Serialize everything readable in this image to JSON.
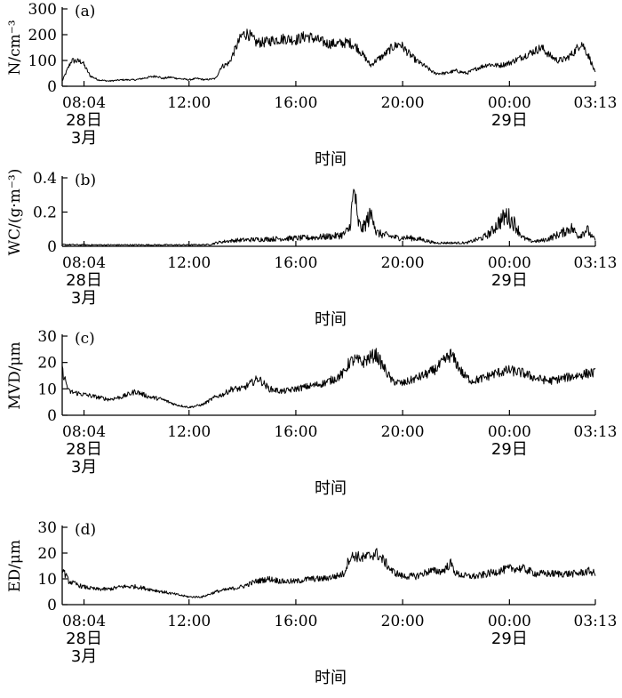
{
  "chart_data": [
    {
      "type": "line",
      "panel_label": "(a)",
      "ylabel": "N/cm⁻³",
      "xlabel": "时间",
      "x_unit": "hours since 28日 00:00",
      "xlim": [
        7.25,
        27.217
      ],
      "ylim": [
        0,
        300
      ],
      "yticks": [
        0,
        100,
        200,
        300
      ],
      "xticks": [
        {
          "x": 8.067,
          "lines": [
            "08:04",
            "28日",
            "3月"
          ]
        },
        {
          "x": 12,
          "lines": [
            "12:00"
          ]
        },
        {
          "x": 16,
          "lines": [
            "16:00"
          ]
        },
        {
          "x": 20,
          "lines": [
            "20:00"
          ]
        },
        {
          "x": 24,
          "lines": [
            "00:00",
            "29日"
          ]
        },
        {
          "x": 27.217,
          "lines": [
            "03:13"
          ]
        }
      ],
      "series": [
        {
          "x": [
            7.25,
            7.6,
            8.0,
            8.3,
            8.6,
            9.0,
            9.5,
            10.0,
            10.5,
            10.8,
            11.0,
            11.3,
            11.6,
            12.0,
            12.3,
            12.6,
            13.0,
            13.2,
            13.5,
            13.8,
            14.0,
            14.2,
            14.5,
            14.8,
            15.2,
            15.6,
            16.0,
            16.4,
            16.8,
            17.2,
            17.6,
            18.0,
            18.3,
            18.6,
            18.8,
            19.0,
            19.3,
            19.6,
            19.9,
            20.2,
            20.5,
            20.8,
            21.2,
            21.6,
            22.0,
            22.4,
            22.8,
            23.2,
            23.6,
            24.0,
            24.4,
            24.8,
            25.2,
            25.5,
            25.8,
            26.1,
            26.4,
            26.7,
            27.0,
            27.217
          ],
          "y": [
            20,
            100,
            95,
            40,
            25,
            20,
            25,
            25,
            35,
            40,
            30,
            35,
            30,
            25,
            30,
            25,
            30,
            75,
            90,
            160,
            200,
            205,
            170,
            170,
            180,
            185,
            180,
            195,
            180,
            165,
            165,
            170,
            150,
            110,
            80,
            100,
            120,
            150,
            165,
            130,
            100,
            80,
            50,
            50,
            60,
            50,
            70,
            85,
            80,
            90,
            110,
            130,
            150,
            120,
            100,
            105,
            130,
            170,
            110,
            50
          ]
        }
      ]
    },
    {
      "type": "line",
      "panel_label": "(b)",
      "ylabel": "WC/(g·m⁻³)",
      "xlabel": "时间",
      "x_unit": "hours since 28日 00:00",
      "xlim": [
        7.25,
        27.217
      ],
      "ylim": [
        0,
        0.4
      ],
      "yticks": [
        0,
        0.2,
        0.4
      ],
      "ytick_labels": [
        "0",
        "0.2",
        "0.4"
      ],
      "xticks": [
        {
          "x": 8.067,
          "lines": [
            "08:04",
            "28日",
            "3月"
          ]
        },
        {
          "x": 12,
          "lines": [
            "12:00"
          ]
        },
        {
          "x": 16,
          "lines": [
            "16:00"
          ]
        },
        {
          "x": 20,
          "lines": [
            "20:00"
          ]
        },
        {
          "x": 24,
          "lines": [
            "00:00",
            "29日"
          ]
        },
        {
          "x": 27.217,
          "lines": [
            "03:13"
          ]
        }
      ],
      "series": [
        {
          "x": [
            7.25,
            8.0,
            9.0,
            10.0,
            11.0,
            12.0,
            12.8,
            13.0,
            13.4,
            13.8,
            14.5,
            15.5,
            16.5,
            17.0,
            17.5,
            17.8,
            18.0,
            18.1,
            18.2,
            18.3,
            18.4,
            18.5,
            18.7,
            18.9,
            19.0,
            19.2,
            19.5,
            19.8,
            20.2,
            20.7,
            21.2,
            21.8,
            22.4,
            23.0,
            23.3,
            23.6,
            23.9,
            24.2,
            24.5,
            24.8,
            25.1,
            25.4,
            25.7,
            26.0,
            26.3,
            26.6,
            26.9,
            27.1,
            27.217
          ],
          "y": [
            0.01,
            0.008,
            0.008,
            0.008,
            0.008,
            0.008,
            0.01,
            0.02,
            0.03,
            0.035,
            0.04,
            0.045,
            0.05,
            0.055,
            0.06,
            0.07,
            0.1,
            0.22,
            0.34,
            0.15,
            0.12,
            0.1,
            0.16,
            0.19,
            0.08,
            0.07,
            0.06,
            0.05,
            0.05,
            0.04,
            0.02,
            0.02,
            0.02,
            0.05,
            0.08,
            0.14,
            0.18,
            0.13,
            0.05,
            0.03,
            0.03,
            0.04,
            0.06,
            0.08,
            0.11,
            0.06,
            0.1,
            0.05,
            0.04
          ]
        }
      ]
    },
    {
      "type": "line",
      "panel_label": "(c)",
      "ylabel": "MVD/μm",
      "xlabel": "时间",
      "x_unit": "hours since 28日 00:00",
      "xlim": [
        7.25,
        27.217
      ],
      "ylim": [
        0,
        30
      ],
      "yticks": [
        0,
        10,
        20,
        30
      ],
      "xticks": [
        {
          "x": 8.067,
          "lines": [
            "08:04",
            "28日",
            "3月"
          ]
        },
        {
          "x": 12,
          "lines": [
            "12:00"
          ]
        },
        {
          "x": 16,
          "lines": [
            "16:00"
          ]
        },
        {
          "x": 20,
          "lines": [
            "20:00"
          ]
        },
        {
          "x": 24,
          "lines": [
            "00:00",
            "29日"
          ]
        },
        {
          "x": 27.217,
          "lines": [
            "03:13"
          ]
        }
      ],
      "series": [
        {
          "x": [
            7.25,
            7.5,
            8.0,
            8.5,
            9.0,
            9.5,
            10.0,
            10.5,
            11.0,
            11.5,
            12.0,
            12.5,
            13.0,
            13.3,
            13.6,
            14.0,
            14.3,
            14.6,
            15.0,
            15.5,
            16.0,
            16.5,
            17.0,
            17.5,
            17.8,
            18.0,
            18.2,
            18.5,
            18.8,
            19.0,
            19.3,
            19.6,
            20.0,
            20.5,
            21.0,
            21.3,
            21.6,
            21.8,
            22.0,
            22.3,
            22.6,
            23.0,
            23.5,
            24.0,
            24.5,
            25.0,
            25.5,
            26.0,
            26.5,
            27.0,
            27.217
          ],
          "y": [
            17,
            9,
            8,
            7,
            6,
            7,
            9,
            7,
            6,
            4,
            3,
            4,
            7,
            8,
            10,
            10,
            12,
            14,
            10,
            9,
            10,
            11,
            12,
            14,
            16,
            20,
            21,
            20,
            22,
            23,
            18,
            13,
            12,
            14,
            16,
            18,
            21,
            23,
            20,
            15,
            13,
            14,
            16,
            17,
            16,
            14,
            13,
            14,
            15,
            16,
            16
          ]
        }
      ]
    },
    {
      "type": "line",
      "panel_label": "(d)",
      "ylabel": "ED/μm",
      "xlabel": "时间",
      "x_unit": "hours since 28日 00:00",
      "xlim": [
        7.25,
        27.217
      ],
      "ylim": [
        0,
        30
      ],
      "yticks": [
        0,
        10,
        20,
        30
      ],
      "xticks": [
        {
          "x": 8.067,
          "lines": [
            "08:04",
            "28日",
            "3月"
          ]
        },
        {
          "x": 12,
          "lines": [
            "12:00"
          ]
        },
        {
          "x": 16,
          "lines": [
            "16:00"
          ]
        },
        {
          "x": 20,
          "lines": [
            "20:00"
          ]
        },
        {
          "x": 24,
          "lines": [
            "00:00",
            "29日"
          ]
        },
        {
          "x": 27.217,
          "lines": [
            "03:13"
          ]
        }
      ],
      "series": [
        {
          "x": [
            7.25,
            7.5,
            8.0,
            8.5,
            9.0,
            9.5,
            10.0,
            10.5,
            11.0,
            11.5,
            12.0,
            12.5,
            13.0,
            13.5,
            14.0,
            14.5,
            15.0,
            15.5,
            16.0,
            16.5,
            17.0,
            17.5,
            17.8,
            18.0,
            18.2,
            18.5,
            18.8,
            19.0,
            19.3,
            19.6,
            20.0,
            20.5,
            21.0,
            21.5,
            21.8,
            22.0,
            22.4,
            22.8,
            23.2,
            23.6,
            24.0,
            24.5,
            25.0,
            25.5,
            26.0,
            26.5,
            27.0,
            27.217
          ],
          "y": [
            14,
            9,
            7,
            6,
            6,
            7,
            7,
            6,
            5,
            4,
            3,
            3,
            5,
            6,
            7,
            9,
            10,
            9,
            9,
            10,
            10,
            11,
            12,
            18,
            19,
            18,
            19,
            20,
            17,
            13,
            11,
            11,
            13,
            13,
            16,
            12,
            11,
            11,
            12,
            13,
            14,
            14,
            12,
            12,
            12,
            12,
            13,
            12
          ]
        }
      ]
    }
  ]
}
